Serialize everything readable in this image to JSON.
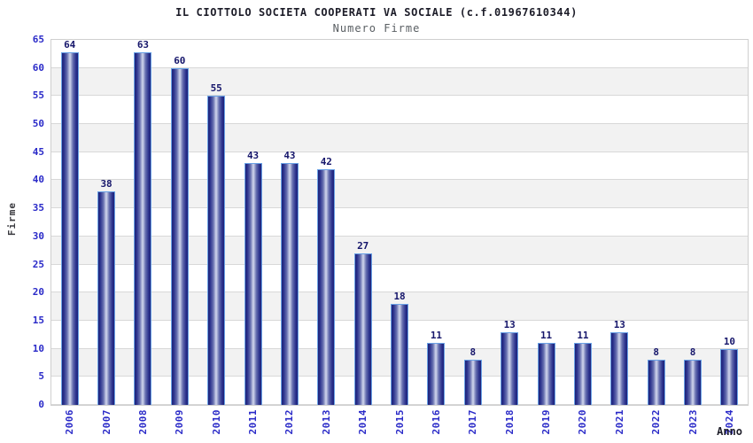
{
  "header": {
    "title": "IL CIOTTOLO SOCIETA COOPERATI VA SOCIALE (c.f.01967610344)",
    "subtitle": "Numero Firme"
  },
  "chart_data": {
    "type": "bar",
    "title": "IL CIOTTOLO SOCIETA COOPERATI VA SOCIALE (c.f.01967610344)",
    "subtitle": "Numero Firme",
    "xlabel": "Anno",
    "ylabel": "Firme",
    "categories": [
      "2006",
      "2007",
      "2008",
      "2009",
      "2010",
      "2011",
      "2012",
      "2013",
      "2014",
      "2015",
      "2016",
      "2017",
      "2018",
      "2019",
      "2020",
      "2021",
      "2022",
      "2023",
      "2024"
    ],
    "values": [
      64,
      38,
      63,
      60,
      55,
      43,
      43,
      42,
      27,
      18,
      11,
      8,
      13,
      11,
      11,
      13,
      8,
      8,
      10
    ],
    "ylim": [
      0,
      65
    ],
    "ytick_step": 5,
    "yticks": [
      0,
      5,
      10,
      15,
      20,
      25,
      30,
      35,
      40,
      45,
      50,
      55,
      60,
      65
    ],
    "grid": true,
    "grid_bands_alternating": true,
    "legend": false,
    "data_labels": true,
    "x_tick_rotation_deg": 90
  },
  "colors": {
    "tick_blue": "#2a2ac8",
    "data_label_navy": "#16166b",
    "bar_dark": "#1e2378",
    "bar_mid": "#6770b0",
    "bar_light": "#d3d8ee",
    "bar_border": "#6aa2e6",
    "band_gray": "#f2f2f2",
    "gridline": "#d8d8d8",
    "plot_border": "#cfcfcf",
    "title_color": "#1c1c28",
    "subtitle_color": "#5a5f63"
  }
}
